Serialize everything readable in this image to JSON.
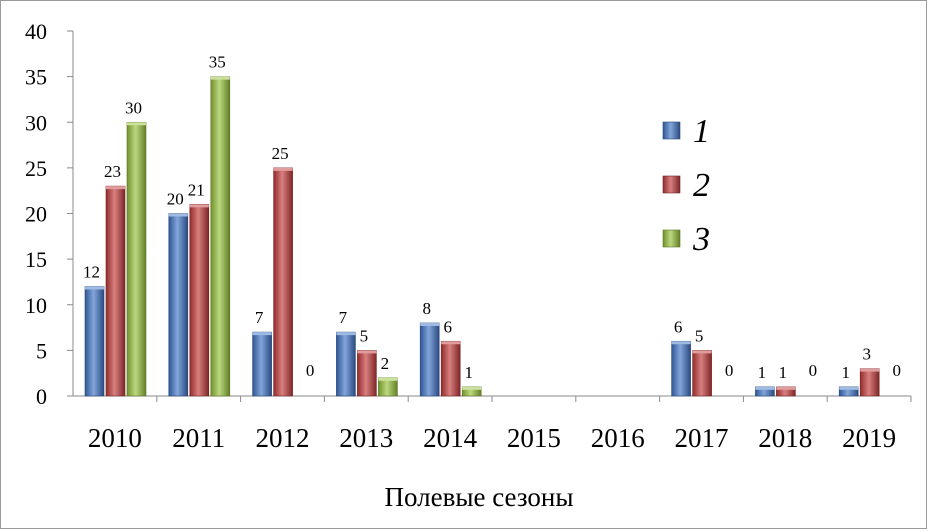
{
  "chart_data": {
    "type": "bar",
    "categories": [
      "2010",
      "2011",
      "2012",
      "2013",
      "2014",
      "2015",
      "2016",
      "2017",
      "2018",
      "2019"
    ],
    "series": [
      {
        "name": "1",
        "color": "#3f74c6",
        "values": [
          12,
          20,
          7,
          7,
          8,
          null,
          null,
          6,
          1,
          1
        ],
        "labels": [
          "12",
          "20",
          "7",
          "7",
          "8",
          "",
          "",
          "6",
          "1",
          "1"
        ]
      },
      {
        "name": "2",
        "color": "#c33a3a",
        "values": [
          23,
          21,
          25,
          5,
          6,
          null,
          null,
          5,
          1,
          3
        ],
        "labels": [
          "23",
          "21",
          "25",
          "5",
          "6",
          "",
          "",
          "5",
          "1",
          "3"
        ]
      },
      {
        "name": "3",
        "color": "#97c33b",
        "values": [
          30,
          35,
          0,
          2,
          1,
          null,
          null,
          0,
          0,
          0
        ],
        "labels": [
          "30",
          "35",
          "0",
          "2",
          "1",
          "",
          "",
          "0",
          "0",
          "0"
        ]
      }
    ],
    "y_ticks": [
      "0",
      "5",
      "10",
      "15",
      "20",
      "25",
      "30",
      "35",
      "40"
    ],
    "ylim": [
      0,
      40
    ],
    "xlabel": "Полевые сезоны",
    "ylabel": "",
    "legend_position": "right",
    "grid": false
  }
}
